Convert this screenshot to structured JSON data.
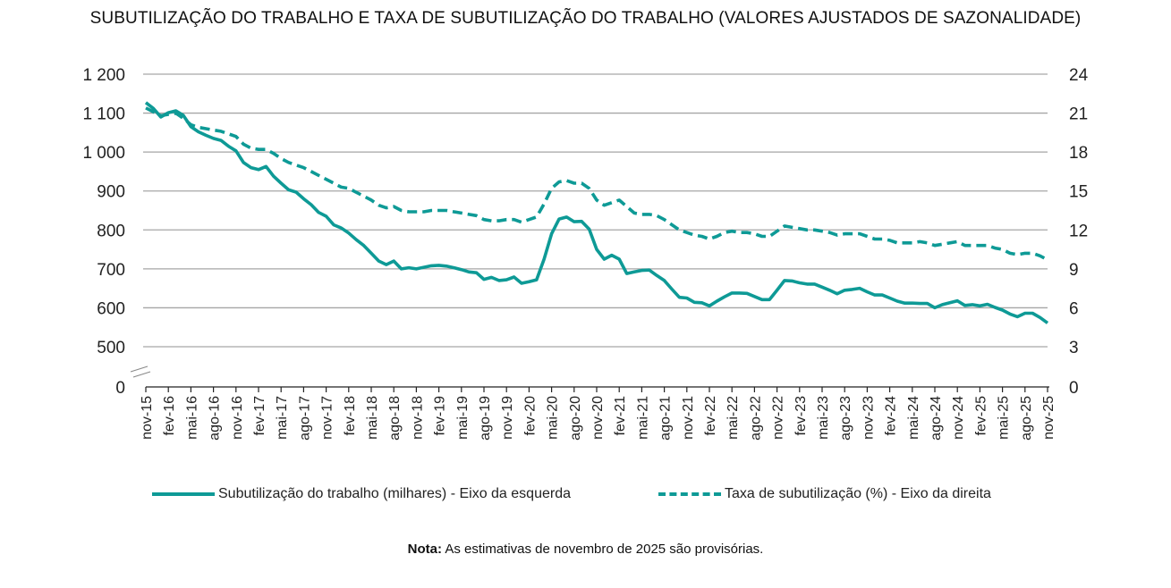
{
  "chart_data": {
    "type": "line",
    "title": "SUBUTILIZAÇÃO DO TRABALHO E TAXA DE SUBUTILIZAÇÃO DO TRABALHO (VALORES AJUSTADOS DE SAZONALIDADE)",
    "xlabel": "",
    "ylabel_left": "",
    "ylabel_right": "",
    "ylim_left": [
      0,
      1200
    ],
    "ylim_right": [
      0,
      24
    ],
    "axis_break_left": [
      0,
      500
    ],
    "yticks_left": [
      0,
      500,
      600,
      700,
      800,
      900,
      1000,
      1100,
      1200
    ],
    "ytick_labels_left": [
      "0",
      "500",
      "600",
      "700",
      "800",
      "900",
      "1 000",
      "1 100",
      "1 200"
    ],
    "yticks_right": [
      0,
      3,
      6,
      9,
      12,
      15,
      18,
      21,
      24
    ],
    "ytick_labels_right": [
      "0",
      "3",
      "6",
      "9",
      "12",
      "15",
      "18",
      "21",
      "24"
    ],
    "grid": true,
    "start_month": "nov-15",
    "xtick_labels": [
      "nov-15",
      "fev-16",
      "mai-16",
      "ago-16",
      "nov-16",
      "fev-17",
      "mai-17",
      "ago-17",
      "nov-17",
      "fev-18",
      "mai-18",
      "ago-18",
      "nov-18",
      "fev-19",
      "mai-19",
      "ago-19",
      "nov-19",
      "fev-20",
      "mai-20",
      "ago-20",
      "nov-20",
      "fev-21",
      "mai-21",
      "ago-21",
      "nov-21",
      "fev-22",
      "mai-22",
      "ago-22",
      "nov-22",
      "fev-23",
      "mai-23",
      "ago-23",
      "nov-23",
      "fev-24",
      "mai-24",
      "ago-24",
      "nov-24",
      "fev-25",
      "mai-25",
      "ago-25",
      "nov-25"
    ],
    "legend_position": "bottom",
    "series": [
      {
        "name": "Subutilização do trabalho (milhares) - Eixo da esquerda",
        "axis": "left",
        "style": "solid",
        "color": "#0e9a96",
        "values": [
          1127,
          1112,
          1090,
          1101,
          1106,
          1094,
          1065,
          1052,
          1043,
          1035,
          1030,
          1015,
          1003,
          973,
          960,
          955,
          963,
          938,
          920,
          903,
          897,
          880,
          865,
          845,
          835,
          813,
          805,
          792,
          775,
          760,
          740,
          720,
          711,
          720,
          700,
          703,
          700,
          704,
          708,
          709,
          707,
          703,
          698,
          692,
          690,
          673,
          678,
          670,
          672,
          679,
          663,
          667,
          672,
          725,
          790,
          828,
          833,
          821,
          822,
          802,
          750,
          725,
          735,
          725,
          688,
          692,
          696,
          697,
          683,
          670,
          648,
          627,
          625,
          614,
          613,
          605,
          617,
          628,
          638,
          638,
          637,
          629,
          621,
          621,
          645,
          670,
          669,
          664,
          661,
          661,
          653,
          645,
          636,
          645,
          647,
          650,
          641,
          633,
          633,
          625,
          617,
          612,
          612,
          611,
          611,
          600,
          608,
          613,
          618,
          606,
          608,
          605,
          609,
          601,
          594,
          584,
          577,
          586,
          586,
          575,
          561
        ]
      },
      {
        "name": "Taxa de subutilização (%) - Eixo da direita",
        "axis": "right",
        "style": "dashed",
        "color": "#0e9a96",
        "values": [
          21.4,
          21.1,
          20.8,
          20.9,
          21.0,
          20.6,
          20.1,
          19.9,
          19.8,
          19.7,
          19.6,
          19.4,
          19.2,
          18.6,
          18.3,
          18.2,
          18.2,
          17.9,
          17.5,
          17.2,
          17.0,
          16.8,
          16.5,
          16.2,
          15.9,
          15.6,
          15.3,
          15.2,
          14.9,
          14.6,
          14.3,
          13.9,
          13.7,
          13.8,
          13.5,
          13.4,
          13.4,
          13.4,
          13.5,
          13.5,
          13.5,
          13.4,
          13.3,
          13.2,
          13.1,
          12.8,
          12.7,
          12.7,
          12.8,
          12.8,
          12.6,
          12.8,
          13.0,
          14.0,
          15.2,
          15.7,
          15.8,
          15.6,
          15.6,
          15.2,
          14.3,
          13.9,
          14.1,
          14.3,
          13.8,
          13.3,
          13.2,
          13.2,
          13.1,
          12.8,
          12.4,
          12.0,
          11.8,
          11.6,
          11.5,
          11.3,
          11.5,
          11.8,
          11.9,
          11.8,
          11.8,
          11.7,
          11.5,
          11.5,
          11.9,
          12.3,
          12.2,
          12.1,
          12.0,
          12.0,
          11.9,
          11.8,
          11.6,
          11.7,
          11.7,
          11.7,
          11.5,
          11.3,
          11.3,
          11.2,
          11.0,
          11.0,
          11.0,
          11.1,
          11.0,
          10.8,
          10.9,
          11.0,
          11.1,
          10.8,
          10.8,
          10.8,
          10.8,
          10.6,
          10.5,
          10.2,
          10.1,
          10.2,
          10.2,
          10.0,
          9.7
        ]
      }
    ]
  },
  "note": {
    "label": "Nota:",
    "text": " As estimativas de novembro de 2025 são provisórias."
  }
}
